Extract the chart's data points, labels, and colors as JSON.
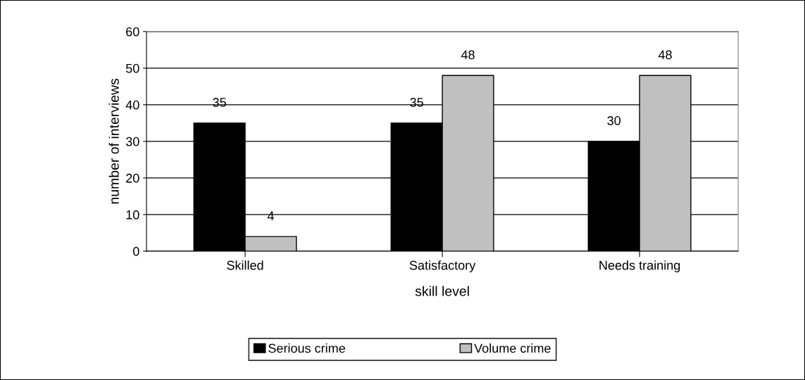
{
  "chart_data": {
    "type": "bar",
    "xlabel": "skill level",
    "ylabel": "number of interviews",
    "categories": [
      "Skilled",
      "Satisfactory",
      "Needs training"
    ],
    "series": [
      {
        "name": "Serious crime",
        "color": "#000000",
        "values": [
          35,
          35,
          30
        ]
      },
      {
        "name": "Volume crime",
        "color": "#c0c0c0",
        "values": [
          4,
          48,
          48
        ]
      }
    ],
    "ylim": [
      0,
      60
    ],
    "yticks": [
      0,
      10,
      20,
      30,
      40,
      50,
      60
    ],
    "grid": "y",
    "legend": "bottom",
    "data_labels": true
  }
}
